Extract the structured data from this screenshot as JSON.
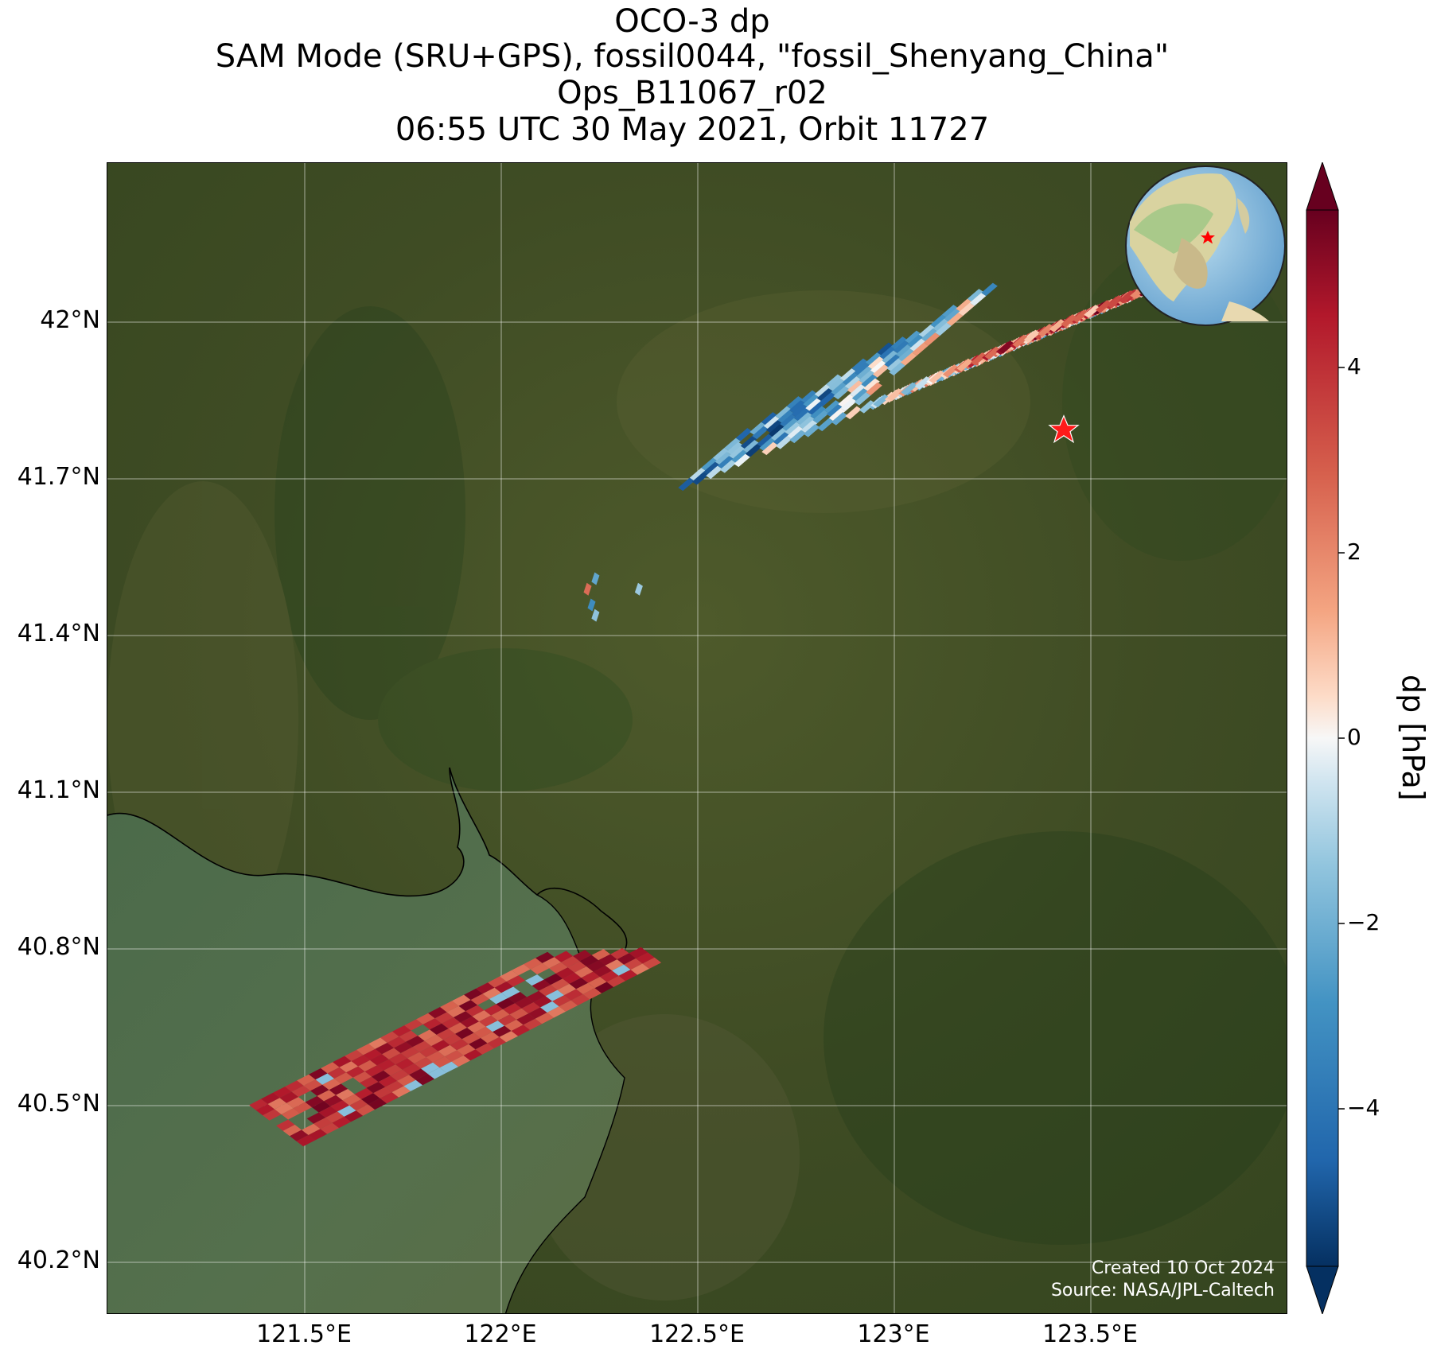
{
  "title_lines": [
    "OCO-3 dp",
    "SAM Mode (SRU+GPS), fossil0044, \"fossil_Shenyang_China\"",
    "Ops_B11067_r02",
    "06:55 UTC 30 May 2021, Orbit 11727"
  ],
  "map": {
    "lon_range": [
      121.0,
      124.0
    ],
    "lat_range": [
      40.1,
      42.3
    ],
    "lon_ticks": [
      "121.5°E",
      "122°E",
      "122.5°E",
      "123°E",
      "123.5°E"
    ],
    "lat_ticks": [
      "42°N",
      "41.7°N",
      "41.4°N",
      "41.1°N",
      "40.8°N",
      "40.5°N",
      "40.2°N"
    ],
    "grid": true,
    "basemap": "satellite imagery",
    "target_marker": {
      "lon": 123.43,
      "lat": 41.79,
      "shape": "star",
      "color": "#ff0000"
    },
    "inset": "globe-with-star"
  },
  "colorbar": {
    "label": "dp [hPa]",
    "range": [
      -5.5,
      5.5
    ],
    "ticks": [
      "4",
      "2",
      "0",
      "−2",
      "−4"
    ],
    "colormap": "RdBu_r",
    "extend": "both"
  },
  "credit": {
    "created": "Created 10 Oct 2024",
    "source": "Source: NASA/JPL-Caltech"
  }
}
